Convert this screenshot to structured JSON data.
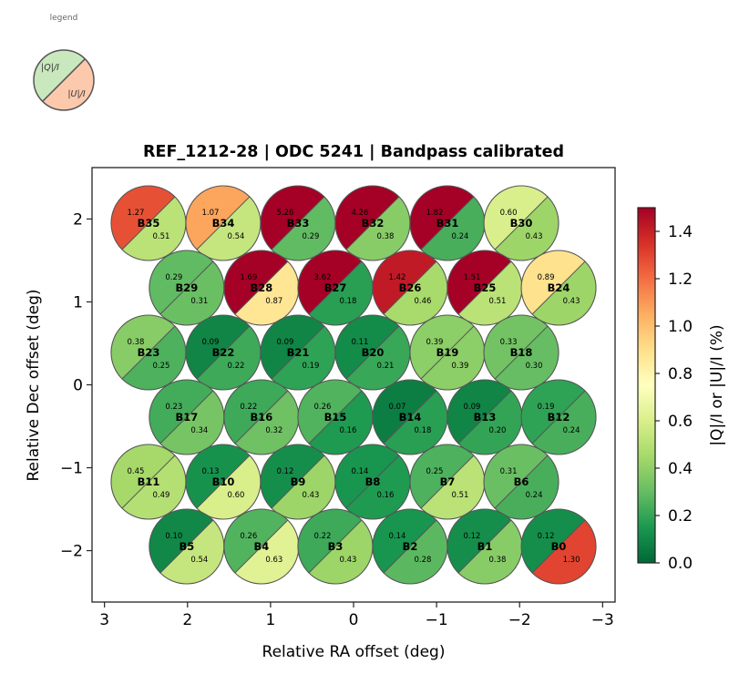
{
  "legend": {
    "title": "legend",
    "q_label": "|Q|/I",
    "u_label": "|U|/I",
    "q_color": "#c9e8bd",
    "u_color": "#fcc9ad"
  },
  "chart_data": {
    "type": "heatmap",
    "title": "REF_1212-28  |  ODC 5241  |  Bandpass calibrated",
    "xlabel": "Relative RA offset (deg)",
    "ylabel": "Relative Dec offset (deg)",
    "xlim": [
      3.15,
      -3.15
    ],
    "ylim": [
      -2.62,
      2.62
    ],
    "xticks": [
      3,
      2,
      1,
      0,
      -1,
      -2,
      -3
    ],
    "xtick_labels": [
      "3",
      "2",
      "1",
      "0",
      "−1",
      "−2",
      "−3"
    ],
    "yticks": [
      2,
      1,
      0,
      -1,
      -2
    ],
    "ytick_labels": [
      "2",
      "1",
      "0",
      "−1",
      "−2"
    ],
    "grid": false,
    "beam_radius_deg": 0.45,
    "colorbar": {
      "label": "|Q|/I  or  |U|/I  (%)",
      "colormap": "RdYlGn_r",
      "range": [
        0.0,
        1.5
      ],
      "ticks": [
        0.0,
        0.2,
        0.4,
        0.6,
        0.8,
        1.0,
        1.2,
        1.4
      ],
      "tick_labels": [
        "0.0",
        "0.2",
        "0.4",
        "0.6",
        "0.8",
        "1.0",
        "1.2",
        "1.4"
      ]
    },
    "beams": [
      {
        "name": "B35",
        "ra": 2.47,
        "dec": 1.95,
        "q": 1.27,
        "u": 0.51
      },
      {
        "name": "B34",
        "ra": 1.57,
        "dec": 1.95,
        "q": 1.07,
        "u": 0.54
      },
      {
        "name": "B33",
        "ra": 0.67,
        "dec": 1.95,
        "q": 5.26,
        "u": 0.29
      },
      {
        "name": "B32",
        "ra": -0.23,
        "dec": 1.95,
        "q": 4.26,
        "u": 0.38
      },
      {
        "name": "B31",
        "ra": -1.13,
        "dec": 1.95,
        "q": 1.82,
        "u": 0.24
      },
      {
        "name": "B30",
        "ra": -2.02,
        "dec": 1.95,
        "q": 0.6,
        "u": 0.43
      },
      {
        "name": "B29",
        "ra": 2.01,
        "dec": 1.17,
        "q": 0.29,
        "u": 0.31
      },
      {
        "name": "B28",
        "ra": 1.11,
        "dec": 1.17,
        "q": 1.69,
        "u": 0.87
      },
      {
        "name": "B27",
        "ra": 0.22,
        "dec": 1.17,
        "q": 3.62,
        "u": 0.18
      },
      {
        "name": "B26",
        "ra": -0.68,
        "dec": 1.17,
        "q": 1.42,
        "u": 0.46
      },
      {
        "name": "B25",
        "ra": -1.58,
        "dec": 1.17,
        "q": 1.51,
        "u": 0.51
      },
      {
        "name": "B24",
        "ra": -2.47,
        "dec": 1.17,
        "q": 0.89,
        "u": 0.43
      },
      {
        "name": "B23",
        "ra": 2.47,
        "dec": 0.39,
        "q": 0.38,
        "u": 0.25
      },
      {
        "name": "B22",
        "ra": 1.57,
        "dec": 0.39,
        "q": 0.09,
        "u": 0.22
      },
      {
        "name": "B21",
        "ra": 0.67,
        "dec": 0.39,
        "q": 0.09,
        "u": 0.19
      },
      {
        "name": "B20",
        "ra": -0.23,
        "dec": 0.39,
        "q": 0.11,
        "u": 0.21
      },
      {
        "name": "B19",
        "ra": -1.13,
        "dec": 0.39,
        "q": 0.39,
        "u": 0.39
      },
      {
        "name": "B18",
        "ra": -2.02,
        "dec": 0.39,
        "q": 0.33,
        "u": 0.3
      },
      {
        "name": "B17",
        "ra": 2.01,
        "dec": -0.39,
        "q": 0.23,
        "u": 0.34
      },
      {
        "name": "B16",
        "ra": 1.11,
        "dec": -0.39,
        "q": 0.22,
        "u": 0.32
      },
      {
        "name": "B15",
        "ra": 0.22,
        "dec": -0.39,
        "q": 0.26,
        "u": 0.16
      },
      {
        "name": "B14",
        "ra": -0.68,
        "dec": -0.39,
        "q": 0.07,
        "u": 0.18
      },
      {
        "name": "B13",
        "ra": -1.58,
        "dec": -0.39,
        "q": 0.09,
        "u": 0.2
      },
      {
        "name": "B12",
        "ra": -2.47,
        "dec": -0.39,
        "q": 0.19,
        "u": 0.24
      },
      {
        "name": "B11",
        "ra": 2.47,
        "dec": -1.17,
        "q": 0.45,
        "u": 0.49
      },
      {
        "name": "B10",
        "ra": 1.57,
        "dec": -1.17,
        "q": 0.13,
        "u": 0.6
      },
      {
        "name": "B9",
        "ra": 0.67,
        "dec": -1.17,
        "q": 0.12,
        "u": 0.43
      },
      {
        "name": "B8",
        "ra": -0.23,
        "dec": -1.17,
        "q": 0.14,
        "u": 0.16
      },
      {
        "name": "B7",
        "ra": -1.13,
        "dec": -1.17,
        "q": 0.25,
        "u": 0.51
      },
      {
        "name": "B6",
        "ra": -2.02,
        "dec": -1.17,
        "q": 0.31,
        "u": 0.24
      },
      {
        "name": "B5",
        "ra": 2.01,
        "dec": -1.95,
        "q": 0.1,
        "u": 0.54
      },
      {
        "name": "B4",
        "ra": 1.11,
        "dec": -1.95,
        "q": 0.26,
        "u": 0.63
      },
      {
        "name": "B3",
        "ra": 0.22,
        "dec": -1.95,
        "q": 0.22,
        "u": 0.43
      },
      {
        "name": "B2",
        "ra": -0.68,
        "dec": -1.95,
        "q": 0.14,
        "u": 0.28
      },
      {
        "name": "B1",
        "ra": -1.58,
        "dec": -1.95,
        "q": 0.12,
        "u": 0.38
      },
      {
        "name": "B0",
        "ra": -2.47,
        "dec": -1.95,
        "q": 0.12,
        "u": 1.3
      }
    ]
  }
}
